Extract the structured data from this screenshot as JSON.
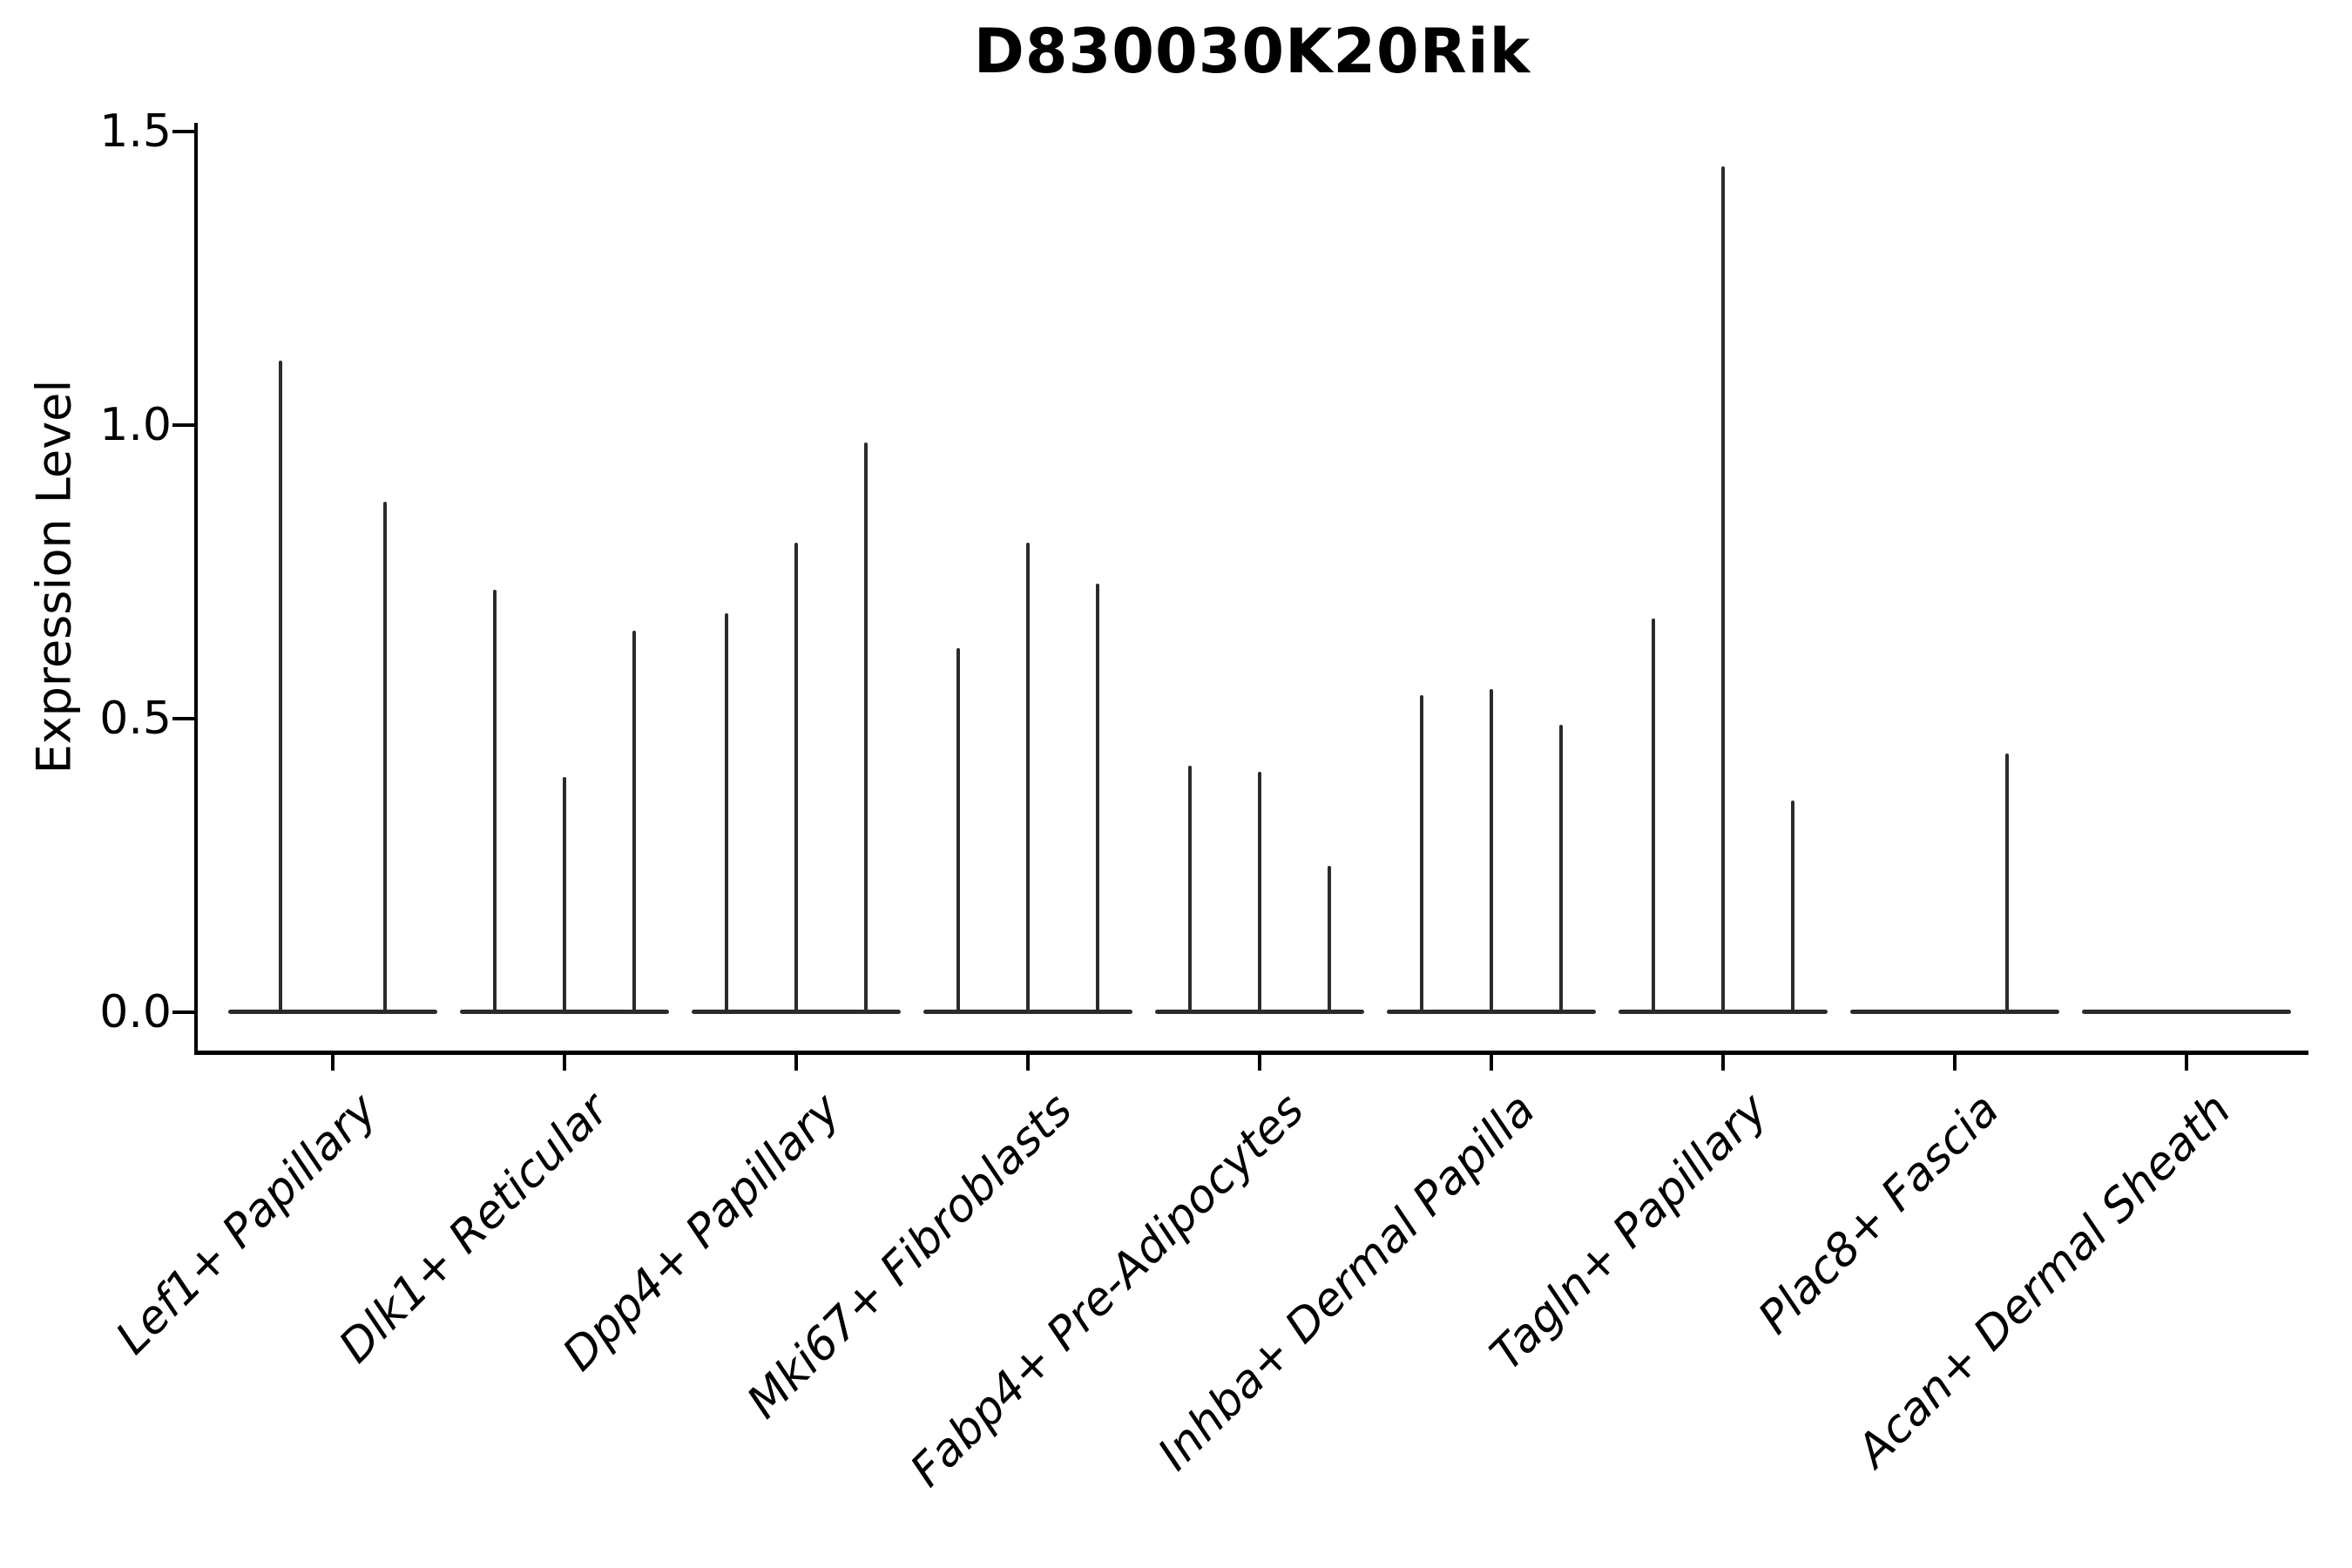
{
  "title": "D830030K20Rik",
  "ylabel": "Expression Level",
  "colors": {
    "violin_line": "#2b2b2b",
    "axis": "#000000",
    "background": "#ffffff"
  },
  "chart_data": {
    "type": "violin",
    "title": "D830030K20Rik",
    "xlabel": "",
    "ylabel": "Expression Level",
    "ylim": [
      -0.07,
      1.52
    ],
    "grid": false,
    "legend": "none",
    "x_tick_rotation": 45,
    "x_tick_style": "italic",
    "yticks": [
      {
        "label": "0.0",
        "value": 0.0
      },
      {
        "label": "0.5",
        "value": 0.5
      },
      {
        "label": "1.0",
        "value": 1.0
      },
      {
        "label": "1.5",
        "value": 1.5
      }
    ],
    "note": "Sparse single-cell expression violin plot: each violin collapses to a flat baseline at 0 with a thin spike up to its maximum expression value; offset = horizontal dodge position of each sub-violin within its category slot; max = peak expression level reached by the spike (0 max = fully collapsed violin, baseline only).",
    "categories": [
      {
        "label": "Lef1+ Papillary",
        "violins": [
          {
            "offset": -60,
            "max": 1.11
          },
          {
            "offset": 60,
            "max": 0.87
          }
        ]
      },
      {
        "label": "Dlk1+ Reticular",
        "violins": [
          {
            "offset": -80,
            "max": 0.72
          },
          {
            "offset": 0,
            "max": 0.4
          },
          {
            "offset": 80,
            "max": 0.65
          }
        ]
      },
      {
        "label": "Dpp4+ Papillary",
        "violins": [
          {
            "offset": -80,
            "max": 0.68
          },
          {
            "offset": 0,
            "max": 0.8
          },
          {
            "offset": 80,
            "max": 0.97
          }
        ]
      },
      {
        "label": "Mki67+ Fibroblasts",
        "violins": [
          {
            "offset": -80,
            "max": 0.62
          },
          {
            "offset": 0,
            "max": 0.8
          },
          {
            "offset": 80,
            "max": 0.73
          }
        ]
      },
      {
        "label": "Fabp4+ Pre-Adipocytes",
        "violins": [
          {
            "offset": -80,
            "max": 0.42
          },
          {
            "offset": 0,
            "max": 0.41
          },
          {
            "offset": 80,
            "max": 0.25
          }
        ]
      },
      {
        "label": "Inhba+ Dermal Papilla",
        "violins": [
          {
            "offset": -80,
            "max": 0.54
          },
          {
            "offset": 0,
            "max": 0.55
          },
          {
            "offset": 80,
            "max": 0.49
          }
        ]
      },
      {
        "label": "Tagln+ Papillary",
        "violins": [
          {
            "offset": -80,
            "max": 0.67
          },
          {
            "offset": 0,
            "max": 1.44
          },
          {
            "offset": 80,
            "max": 0.36
          }
        ]
      },
      {
        "label": "Plac8+ Fascia",
        "violins": [
          {
            "offset": 60,
            "max": 0.44
          }
        ]
      },
      {
        "label": "Acan+ Dermal Sheath",
        "violins": []
      }
    ]
  }
}
